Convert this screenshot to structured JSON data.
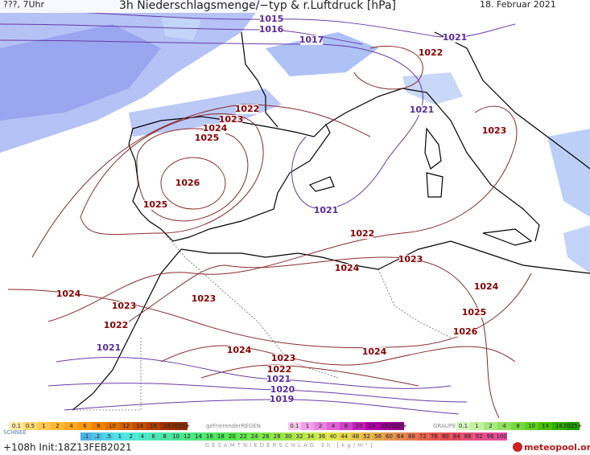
{
  "header": {
    "left": "???, 7Uhr",
    "title": "3h Niederschlagsmenge/−typ & r.Luftdruck [hPa]",
    "date": "18. Februar 2021"
  },
  "isobar_labels": [
    {
      "text": "1015",
      "color": "#5b2a9e"
    },
    {
      "text": "1016",
      "color": "#5b2a9e"
    },
    {
      "text": "1017",
      "color": "#5b2a9e"
    },
    {
      "text": "1021",
      "color": "#5b2a9e"
    },
    {
      "text": "1021",
      "color": "#5b2a9e"
    },
    {
      "text": "1021",
      "color": "#5b2a9e"
    },
    {
      "text": "1021",
      "color": "#5b2a9e"
    },
    {
      "text": "1021",
      "color": "#5b2a9e"
    },
    {
      "text": "1020",
      "color": "#5b2a9e"
    },
    {
      "text": "1019",
      "color": "#5b2a9e"
    },
    {
      "text": "1022",
      "color": "#8b0000"
    },
    {
      "text": "1022",
      "color": "#8b0000"
    },
    {
      "text": "1023",
      "color": "#8b0000"
    },
    {
      "text": "1024",
      "color": "#8b0000"
    },
    {
      "text": "1025",
      "color": "#8b0000"
    },
    {
      "text": "1026",
      "color": "#8b0000"
    },
    {
      "text": "1025",
      "color": "#8b0000"
    },
    {
      "text": "1023",
      "color": "#8b0000"
    },
    {
      "text": "1022",
      "color": "#8b0000"
    },
    {
      "text": "1023",
      "color": "#8b0000"
    },
    {
      "text": "1024",
      "color": "#8b0000"
    },
    {
      "text": "1024",
      "color": "#8b0000"
    },
    {
      "text": "1023",
      "color": "#8b0000"
    },
    {
      "text": "1023",
      "color": "#8b0000"
    },
    {
      "text": "1022",
      "color": "#8b0000"
    },
    {
      "text": "1024",
      "color": "#8b0000"
    },
    {
      "text": "1025",
      "color": "#8b0000"
    },
    {
      "text": "1026",
      "color": "#8b0000"
    },
    {
      "text": "1024",
      "color": "#8b0000"
    },
    {
      "text": "1024",
      "color": "#8b0000"
    },
    {
      "text": "1023",
      "color": "#8b0000"
    },
    {
      "text": "1022",
      "color": "#8b0000"
    }
  ],
  "legend": {
    "snow": {
      "name": "SCHNEE",
      "steps": [
        "0.1",
        "0.5",
        "1",
        "2",
        "4",
        "6",
        "8",
        "10",
        "12",
        "14",
        "16",
        "18",
        "2025+"
      ],
      "colors": [
        "#ffe9a0",
        "#ffd870",
        "#ffc850",
        "#ffb830",
        "#ffa820",
        "#ff9810",
        "#f08000",
        "#e07000",
        "#d06000",
        "#c05000",
        "#b04000",
        "#a03000",
        "#903000"
      ]
    },
    "freezing_rain": {
      "name": "gefrierenderREGEN",
      "steps": [
        "0.1",
        "1",
        "2",
        "4",
        "8",
        "10",
        "14",
        "16",
        "2025+"
      ],
      "colors": [
        "#f8c8f0",
        "#f0a0e8",
        "#e880e0",
        "#e060d8",
        "#d040c8",
        "#c020b8",
        "#b000a8",
        "#a00098",
        "#900088"
      ]
    },
    "graupel": {
      "name": "GRAUPEL",
      "steps": [
        "0.1",
        "1",
        "2",
        "4",
        "8",
        "10",
        "14",
        "16",
        "2025+"
      ],
      "colors": [
        "#d8f8c0",
        "#c0f0a0",
        "#a8e880",
        "#90e060",
        "#78d840",
        "#60d020",
        "#48c000",
        "#30b000",
        "#20a000"
      ]
    },
    "total": {
      "name": "GESAMTNIEDERSCHLAG 3h [kg/m²]",
      "steps": [
        ".1",
        ".2",
        ".5",
        "1",
        "2",
        "4",
        "6",
        "8",
        "10",
        "12",
        "14",
        "16",
        "18",
        "20",
        "22",
        "24",
        "26",
        "28",
        "30",
        "32",
        "34",
        "36",
        "40",
        "44",
        "48",
        "52",
        "56",
        "60",
        "64",
        "68",
        "72",
        "76",
        "80",
        "84",
        "88",
        "92",
        "96",
        "100"
      ]
    }
  },
  "footer": {
    "run": "+108h Init:18Z13FEB2021",
    "brand": "meteopool.org"
  }
}
